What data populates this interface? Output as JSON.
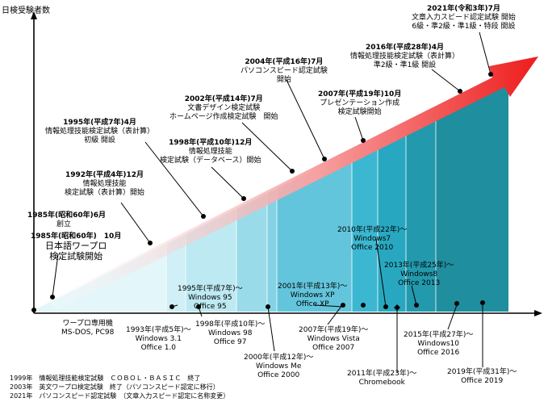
{
  "y_axis_label": "日検受験者数",
  "period_colors": [
    "#e3f6fa",
    "#d0eff6",
    "#bde9f2",
    "#9adbe9",
    "#84d2e4",
    "#63c5db",
    "#3bb7d1",
    "#28a8c0",
    "#2399ad",
    "#1f8e9e"
  ],
  "arrow_color": "#ee1c1c",
  "exam_events": [
    {
      "title": "1985年(昭和60年)6月",
      "body": "創立"
    },
    {
      "title": "1985年(昭和60年)　10月",
      "body": "日本語ワープロ\n検定試験開始"
    },
    {
      "title": "1992年(平成4年)12月",
      "body": "情報処理技能\n検定試験（表計算）開始"
    },
    {
      "title": "1995年(平成7年)4月",
      "body": "情報処理技能検定試験（表計算）\n初級 開設"
    },
    {
      "title": "1998年(平成10年)12月",
      "body": "情報処理技能\n検定試験（データベース）開始"
    },
    {
      "title": "2002年(平成14年)7月",
      "body": "文書デザイン検定試験\nホームページ作成検定試験　開始"
    },
    {
      "title": "2004年(平成16年)7月",
      "body": "パソコンスピード認定試験\n開始"
    },
    {
      "title": "2007年(平成19年)10月",
      "body": "プレゼンテーション作成\n検定試験開始"
    },
    {
      "title": "2016年(平成28年)4月",
      "body": "情報処理技能検定試験（表計算）\n準2級・準1級 開設"
    },
    {
      "title": "2021年(令和3年)7月",
      "body": "文章入力スピード認定試験 開始\n6級・準2級・準1級・特段 開設"
    }
  ],
  "os_events": [
    "ワープロ専用機\nMS-DOS, PC98",
    "1993年(平成5年)～\nWindows 3.1\nOffice 1.0",
    "1995年(平成7年)～\nWindows 95\nOffice 95",
    "1998年(平成10年)～\nWindows 98\nOffice 97",
    "2000年(平成12年)～\nWindows Me\nOffice 2000",
    "2001年(平成13年)～\nWindows XP\nOffice XP",
    "2007年(平成19年)～\nWindows Vista\nOffice 2007",
    "2010年(平成22年)～\nWindows7\nOffice 2010",
    "2011年(平成23年)～\nChromebook",
    "2013年(平成25年)～\nWindows8\nOffice 2013",
    "2015年(平成27年)～\nWindows10\nOffice 2016",
    "2019年(平成31年)～\nOffice 2019"
  ],
  "footnotes": [
    "1999年　情報処理技能検定試験　ＣＯＢＯＬ・ＢＡＳＩＣ　終了",
    "2003年　英文ワープロ検定試験　終了（パソコンスピード認定に移行）",
    "2021年　パソコンスピード認定試験　（文章入力スピード認定に名称変更）"
  ]
}
